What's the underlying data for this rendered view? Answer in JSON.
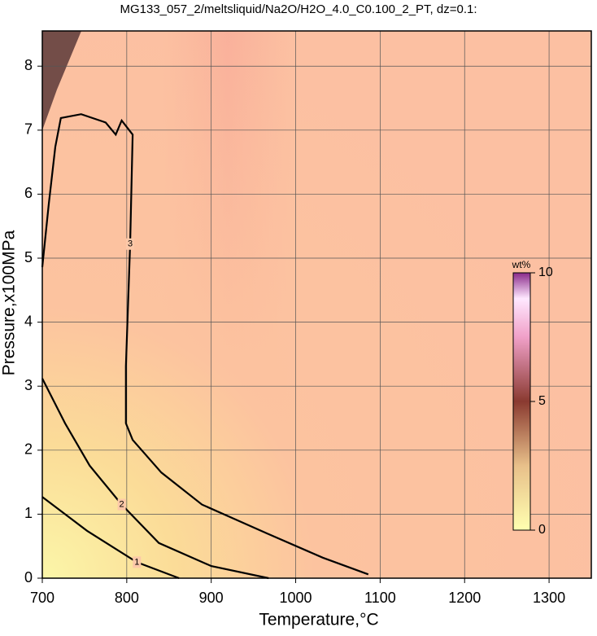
{
  "chart_data": {
    "type": "contour",
    "title": "MG133_057_2/meltsliquid/Na2O/H2O_4.0_C0.100_2_PT, dz=0.1:",
    "xlabel": "Temperature,°C",
    "ylabel": "Pressure,x100MPa",
    "xlim": [
      700,
      1350
    ],
    "ylim": [
      0,
      8.55
    ],
    "xticks": [
      700,
      800,
      900,
      1000,
      1100,
      1200,
      1300
    ],
    "yticks": [
      0,
      1,
      2,
      3,
      4,
      5,
      6,
      7,
      8
    ],
    "grid": true,
    "colorbar": {
      "label": "wt%",
      "lim": [
        0,
        10
      ],
      "ticks": [
        0,
        5,
        10
      ]
    },
    "contours": [
      {
        "level": 3,
        "x": [
          700,
          707.7,
          715.4,
          722,
          746,
          775,
          787,
          794,
          807,
          804,
          799,
          799,
          807,
          841,
          889,
          966,
          1032,
          1086
        ],
        "y": [
          4.86,
          5.85,
          6.74,
          7.19,
          7.25,
          7.12,
          6.93,
          7.15,
          6.93,
          5.22,
          3.31,
          2.42,
          2.16,
          1.65,
          1.15,
          0.7,
          0.32,
          0.06
        ]
      },
      {
        "level": 2,
        "x": [
          700,
          727,
          756,
          794,
          838,
          900,
          968
        ],
        "y": [
          3.12,
          2.42,
          1.76,
          1.15,
          0.55,
          0.19,
          0
        ]
      },
      {
        "level": 1,
        "x": [
          700,
          753,
          812,
          862
        ],
        "y": [
          1.27,
          0.74,
          0.25,
          0
        ]
      }
    ]
  }
}
